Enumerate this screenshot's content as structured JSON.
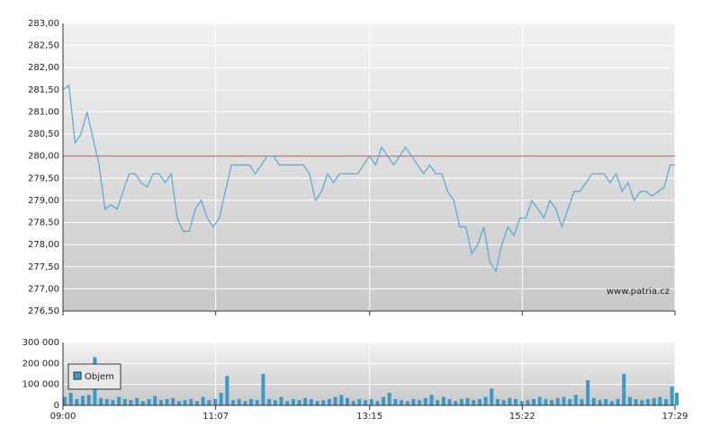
{
  "chart_data": [
    {
      "type": "line",
      "color": "#5aaed4",
      "reference_line": 280,
      "reference_color": "#e04040",
      "watermark": "www.patria.cz",
      "x": [
        0,
        5,
        10,
        15,
        20,
        25,
        30,
        35,
        40,
        45,
        50,
        55,
        60,
        65,
        70,
        75,
        80,
        85,
        90,
        95,
        100,
        105,
        110,
        115,
        120,
        125,
        130,
        135,
        140,
        145,
        150,
        155,
        160,
        165,
        170,
        175,
        180,
        185,
        190,
        195,
        200,
        205,
        210,
        215,
        220,
        225,
        230,
        235,
        240,
        245,
        250,
        255,
        260,
        265,
        270,
        275,
        280,
        285,
        290,
        295,
        300,
        305,
        310,
        315,
        320,
        325,
        330,
        335,
        340,
        345,
        350,
        355,
        360,
        365,
        370,
        375,
        380,
        385,
        390,
        395,
        400,
        405,
        410,
        415,
        420,
        425,
        430,
        435,
        440,
        445,
        450,
        455,
        460,
        465,
        470,
        475,
        480,
        485,
        490,
        495,
        500,
        505,
        509
      ],
      "values": [
        281.5,
        281.6,
        280.3,
        280.5,
        281.0,
        280.4,
        279.8,
        278.8,
        278.9,
        278.8,
        279.2,
        279.6,
        279.6,
        279.4,
        279.3,
        279.6,
        279.6,
        279.4,
        279.6,
        278.6,
        278.3,
        278.3,
        278.8,
        279.0,
        278.6,
        278.4,
        278.6,
        279.2,
        279.8,
        279.8,
        279.8,
        279.8,
        279.6,
        279.8,
        280.0,
        280.0,
        279.8,
        279.8,
        279.8,
        279.8,
        279.8,
        279.6,
        279.0,
        279.2,
        279.6,
        279.4,
        279.6,
        279.6,
        279.6,
        279.6,
        279.8,
        280.0,
        279.8,
        280.2,
        280.0,
        279.8,
        280.0,
        280.2,
        280.0,
        279.8,
        279.6,
        279.8,
        279.6,
        279.6,
        279.2,
        279.0,
        278.4,
        278.4,
        277.8,
        278.0,
        278.4,
        277.6,
        277.4,
        278.0,
        278.4,
        278.2,
        278.6,
        278.6,
        279.0,
        278.8,
        278.6,
        279.0,
        278.8,
        278.4,
        278.8,
        279.2,
        279.2,
        279.4,
        279.6,
        279.6,
        279.6,
        279.4,
        279.6,
        279.2,
        279.4,
        279.0,
        279.2,
        279.2,
        279.1,
        279.2,
        279.3,
        279.8,
        279.8
      ],
      "xlim": [
        0,
        509
      ],
      "xticks": [
        {
          "value": 0,
          "label": "09:00"
        },
        {
          "value": 127,
          "label": "11:07"
        },
        {
          "value": 255,
          "label": "13:15"
        },
        {
          "value": 382,
          "label": "15:22"
        },
        {
          "value": 509,
          "label": "17:29"
        }
      ],
      "ylim": [
        276.5,
        283
      ],
      "yticks": [
        {
          "value": 276.5,
          "label": "276,50"
        },
        {
          "value": 277,
          "label": "277,00"
        },
        {
          "value": 277.5,
          "label": "277,50"
        },
        {
          "value": 278,
          "label": "278,00"
        },
        {
          "value": 278.5,
          "label": "278,50"
        },
        {
          "value": 279,
          "label": "279,00"
        },
        {
          "value": 279.5,
          "label": "279,50"
        },
        {
          "value": 280,
          "label": "280,00"
        },
        {
          "value": 280.5,
          "label": "280,50"
        },
        {
          "value": 281,
          "label": "281,00"
        },
        {
          "value": 281.5,
          "label": "281,50"
        },
        {
          "value": 282,
          "label": "282,00"
        },
        {
          "value": 282.5,
          "label": "282,50"
        },
        {
          "value": 283,
          "label": "283,00"
        }
      ],
      "grid": true
    },
    {
      "type": "bar",
      "x": [
        0,
        5,
        10,
        15,
        20,
        25,
        30,
        35,
        40,
        45,
        50,
        55,
        60,
        65,
        70,
        75,
        80,
        85,
        90,
        95,
        100,
        105,
        110,
        115,
        120,
        125,
        130,
        135,
        140,
        145,
        150,
        155,
        160,
        165,
        170,
        175,
        180,
        185,
        190,
        195,
        200,
        205,
        210,
        215,
        220,
        225,
        230,
        235,
        240,
        245,
        250,
        255,
        260,
        265,
        270,
        275,
        280,
        285,
        290,
        295,
        300,
        305,
        310,
        315,
        320,
        325,
        330,
        335,
        340,
        345,
        350,
        355,
        360,
        365,
        370,
        375,
        380,
        385,
        390,
        395,
        400,
        405,
        410,
        415,
        420,
        425,
        430,
        435,
        440,
        445,
        450,
        455,
        460,
        465,
        470,
        475,
        480,
        485,
        490,
        495,
        500,
        505,
        509
      ],
      "series": [
        {
          "name": "Objem",
          "color": "#3a9bc8",
          "values": [
            40000,
            60000,
            30000,
            45000,
            50000,
            230000,
            35000,
            30000,
            25000,
            40000,
            30000,
            25000,
            35000,
            20000,
            30000,
            45000,
            25000,
            30000,
            35000,
            20000,
            25000,
            30000,
            20000,
            40000,
            25000,
            30000,
            60000,
            140000,
            25000,
            30000,
            20000,
            30000,
            25000,
            150000,
            30000,
            25000,
            40000,
            20000,
            30000,
            25000,
            35000,
            30000,
            20000,
            25000,
            30000,
            40000,
            50000,
            35000,
            20000,
            30000,
            25000,
            30000,
            20000,
            40000,
            60000,
            30000,
            25000,
            20000,
            30000,
            25000,
            35000,
            50000,
            25000,
            40000,
            30000,
            20000,
            30000,
            35000,
            25000,
            30000,
            40000,
            80000,
            30000,
            25000,
            35000,
            30000,
            20000,
            25000,
            30000,
            40000,
            30000,
            25000,
            35000,
            40000,
            30000,
            50000,
            30000,
            120000,
            35000,
            25000,
            30000,
            20000,
            30000,
            150000,
            40000,
            30000,
            25000,
            30000,
            35000,
            40000,
            30000,
            90000,
            60000
          ]
        }
      ],
      "xlim": [
        0,
        509
      ],
      "xticks": [
        {
          "value": 0,
          "label": "09:00"
        },
        {
          "value": 127,
          "label": "11:07"
        },
        {
          "value": 255,
          "label": "13:15"
        },
        {
          "value": 382,
          "label": "15:22"
        },
        {
          "value": 509,
          "label": "17:29"
        }
      ],
      "ylim": [
        0,
        300000
      ],
      "yticks": [
        0,
        {
          "value": 100000,
          "label": "100 000"
        },
        {
          "value": 200000,
          "label": "200 000"
        },
        {
          "value": 300000,
          "label": "300 000"
        }
      ],
      "grid": true,
      "legend": "top-left"
    }
  ]
}
